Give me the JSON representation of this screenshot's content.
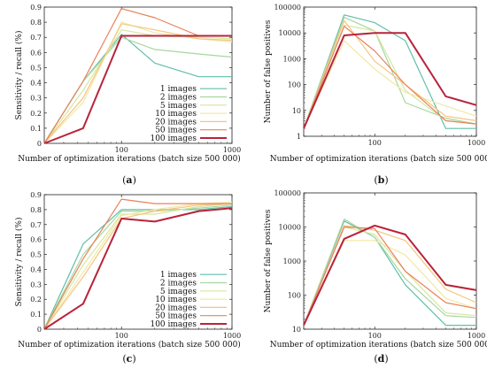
{
  "series_meta": [
    {
      "name": "1 images",
      "color": "#5fbfa9",
      "width": 1.2
    },
    {
      "name": "2 images",
      "color": "#a9d6a0",
      "width": 1.2
    },
    {
      "name": "5 images",
      "color": "#d4e8a0",
      "width": 1.2
    },
    {
      "name": "10 images",
      "color": "#f2e8a6",
      "width": 1.2
    },
    {
      "name": "20 images",
      "color": "#f6c47e",
      "width": 1.2
    },
    {
      "name": "50 images",
      "color": "#e8825a",
      "width": 1.2
    },
    {
      "name": "100 images",
      "color": "#b8233a",
      "width": 2
    }
  ],
  "chart_data": [
    {
      "panel": "a",
      "type": "line",
      "xscale": "log",
      "yscale": "linear",
      "xlim": [
        20,
        1000
      ],
      "ylim": [
        0,
        0.9
      ],
      "xticks": [
        100,
        1000
      ],
      "xtick_labels": [
        "100",
        "1000"
      ],
      "yticks": [
        0,
        0.1,
        0.2,
        0.3,
        0.4,
        0.5,
        0.6,
        0.7,
        0.8,
        0.9
      ],
      "ytick_labels": [
        "0",
        "0.1",
        "0.2",
        "0.3",
        "0.4",
        "0.5",
        "0.6",
        "0.7",
        "0.8",
        "0.9"
      ],
      "xlabel": "Number of optimization iterations (batch size 500 000)",
      "ylabel": "Sensitivity / recall (%)",
      "label": "a",
      "legend": "bottom-right",
      "x": [
        20,
        45,
        100,
        200,
        500,
        1000
      ],
      "series": [
        {
          "name": "1 images",
          "values": [
            0,
            0.41,
            0.72,
            0.53,
            0.44,
            0.44
          ]
        },
        {
          "name": "2 images",
          "values": [
            0,
            0.41,
            0.7,
            0.62,
            0.59,
            0.57
          ]
        },
        {
          "name": "5 images",
          "values": [
            0,
            0.35,
            0.75,
            0.71,
            0.7,
            0.69
          ]
        },
        {
          "name": "10 images",
          "values": [
            0,
            0.27,
            0.8,
            0.73,
            0.69,
            0.67
          ]
        },
        {
          "name": "20 images",
          "values": [
            0,
            0.3,
            0.79,
            0.75,
            0.69,
            0.68
          ]
        },
        {
          "name": "50 images",
          "values": [
            0,
            0.41,
            0.89,
            0.83,
            0.71,
            0.71
          ]
        },
        {
          "name": "100 images",
          "values": [
            0,
            0.1,
            0.71,
            0.71,
            0.71,
            0.71
          ]
        }
      ]
    },
    {
      "panel": "b",
      "type": "line",
      "xscale": "log",
      "yscale": "log",
      "xlim": [
        20,
        1000
      ],
      "ylim": [
        1,
        100000
      ],
      "xticks": [
        100,
        1000
      ],
      "xtick_labels": [
        "100",
        "1000"
      ],
      "yticks": [
        1,
        10,
        100,
        1000,
        10000,
        100000
      ],
      "ytick_labels": [
        "1",
        "10",
        "100",
        "1000",
        "10000",
        "100000"
      ],
      "xlabel": "Number of optimization iterations (batch size 500 000)",
      "ylabel": "Number of false positives",
      "label": "b",
      "x": [
        20,
        50,
        100,
        200,
        500,
        1000
      ],
      "series": [
        {
          "name": "1 images",
          "values": [
            2,
            50000,
            25000,
            5000,
            2,
            2
          ]
        },
        {
          "name": "2 images",
          "values": [
            2,
            40000,
            12000,
            20,
            5,
            3
          ]
        },
        {
          "name": "5 images",
          "values": [
            2,
            20000,
            12000,
            60,
            4,
            3
          ]
        },
        {
          "name": "10 images",
          "values": [
            2,
            5000,
            400,
            50,
            15,
            6
          ]
        },
        {
          "name": "20 images",
          "values": [
            2,
            30000,
            800,
            100,
            6,
            4
          ]
        },
        {
          "name": "50 images",
          "values": [
            2,
            18000,
            2000,
            100,
            4,
            3
          ]
        },
        {
          "name": "100 images",
          "values": [
            2,
            8000,
            10000,
            10000,
            35,
            16
          ]
        }
      ]
    },
    {
      "panel": "c",
      "type": "line",
      "xscale": "log",
      "yscale": "linear",
      "xlim": [
        20,
        1000
      ],
      "ylim": [
        0,
        0.9
      ],
      "xticks": [
        100,
        1000
      ],
      "xtick_labels": [
        "100",
        "1000"
      ],
      "yticks": [
        0,
        0.1,
        0.2,
        0.3,
        0.4,
        0.5,
        0.6,
        0.7,
        0.8,
        0.9
      ],
      "ytick_labels": [
        "0",
        "0.1",
        "0.2",
        "0.3",
        "0.4",
        "0.5",
        "0.6",
        "0.7",
        "0.8",
        "0.9"
      ],
      "xlabel": "Number of optimization iterations (batch size 500 000)",
      "ylabel": "Sensitivity / recall (%)",
      "label": "c",
      "legend": "bottom-right",
      "x": [
        20,
        45,
        100,
        200,
        500,
        1000
      ],
      "series": [
        {
          "name": "1 images",
          "values": [
            0,
            0.57,
            0.8,
            0.8,
            0.8,
            0.82
          ]
        },
        {
          "name": "2 images",
          "values": [
            0,
            0.5,
            0.79,
            0.79,
            0.81,
            0.83
          ]
        },
        {
          "name": "5 images",
          "values": [
            0,
            0.43,
            0.77,
            0.77,
            0.82,
            0.84
          ]
        },
        {
          "name": "10 images",
          "values": [
            0,
            0.38,
            0.76,
            0.8,
            0.84,
            0.85
          ]
        },
        {
          "name": "20 images",
          "values": [
            0,
            0.35,
            0.74,
            0.79,
            0.83,
            0.84
          ]
        },
        {
          "name": "50 images",
          "values": [
            0,
            0.47,
            0.87,
            0.84,
            0.84,
            0.84
          ]
        },
        {
          "name": "100 images",
          "values": [
            0,
            0.17,
            0.74,
            0.72,
            0.79,
            0.81
          ]
        }
      ]
    },
    {
      "panel": "d",
      "type": "line",
      "xscale": "log",
      "yscale": "log",
      "xlim": [
        20,
        1000
      ],
      "ylim": [
        10,
        100000
      ],
      "xticks": [
        100,
        1000
      ],
      "xtick_labels": [
        "100",
        "1000"
      ],
      "yticks": [
        10,
        100,
        1000,
        10000,
        100000
      ],
      "ytick_labels": [
        "10",
        "100",
        "1000",
        "10000",
        "100000"
      ],
      "xlabel": "Number of optimization iterations (batch size 500 000)",
      "ylabel": "Number of false positives",
      "label": "d",
      "x": [
        20,
        50,
        100,
        200,
        500,
        1000
      ],
      "series": [
        {
          "name": "1 images",
          "values": [
            13,
            15000,
            5000,
            200,
            13,
            13
          ]
        },
        {
          "name": "2 images",
          "values": [
            13,
            17000,
            5000,
            300,
            25,
            22
          ]
        },
        {
          "name": "5 images",
          "values": [
            13,
            10000,
            6000,
            500,
            30,
            25
          ]
        },
        {
          "name": "10 images",
          "values": [
            13,
            4000,
            4000,
            1500,
            80,
            40
          ]
        },
        {
          "name": "20 images",
          "values": [
            13,
            11000,
            8000,
            4000,
            150,
            60
          ]
        },
        {
          "name": "50 images",
          "values": [
            13,
            10000,
            9000,
            500,
            60,
            40
          ]
        },
        {
          "name": "100 images",
          "values": [
            13,
            4500,
            11000,
            6000,
            200,
            140
          ]
        }
      ]
    }
  ]
}
